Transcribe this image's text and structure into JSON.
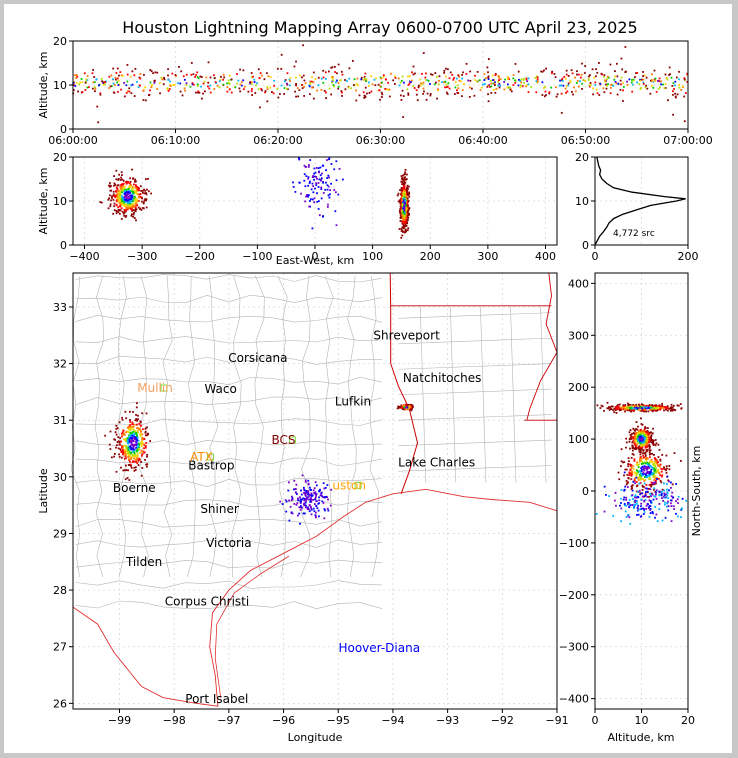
{
  "title": "Houston Lightning Mapping Array 0600-0700 UTC April 23, 2025",
  "colors": {
    "coast": "#e03030",
    "state_border": "#cc0000",
    "county": "#b4b4b4",
    "grid": "#d8d8d8",
    "city": "#000000",
    "station": "#ff8c00",
    "station_box": "#80e040",
    "special": "#0000ff"
  },
  "chart_data": [
    {
      "type": "scatter",
      "name": "time-altitude",
      "xlabel": "",
      "ylabel": "Altitude, km",
      "x_ticks": [
        "06:00:00",
        "06:10:00",
        "06:20:00",
        "06:30:00",
        "06:40:00",
        "06:50:00",
        "07:00:00"
      ],
      "xlim_minutes": [
        0,
        60
      ],
      "ylim": [
        0,
        20
      ],
      "y_ticks": [
        "0",
        "10",
        "20"
      ],
      "points_note": "sources at ~8-13 km across full hour"
    },
    {
      "type": "scatter",
      "name": "east-west-altitude",
      "xlabel": "East-West, km",
      "ylabel": "Altitude, km",
      "xlim": [
        -420,
        420
      ],
      "x_ticks": [
        "−400",
        "−300",
        "−200",
        "−100",
        "0",
        "100",
        "200",
        "300",
        "400"
      ],
      "ylim": [
        0,
        20
      ],
      "y_ticks": [
        "0",
        "10",
        "20"
      ],
      "clusters": [
        {
          "x": -325,
          "y": 11,
          "spread_x": 25,
          "spread_y": 3
        },
        {
          "x": 5,
          "y": 14,
          "spread_x": 30,
          "spread_y": 5
        },
        {
          "x": 155,
          "y": 9,
          "spread_x": 6,
          "spread_y": 4
        }
      ]
    },
    {
      "type": "line",
      "name": "altitude-histogram",
      "xlim": [
        0,
        200
      ],
      "x_ticks": [
        "0",
        "200"
      ],
      "ylim": [
        0,
        20
      ],
      "y_ticks": [
        "0",
        "10",
        "20"
      ],
      "annotation": "4,772 src",
      "profile": [
        [
          0,
          0
        ],
        [
          5,
          1
        ],
        [
          10,
          2
        ],
        [
          18,
          3
        ],
        [
          25,
          4
        ],
        [
          30,
          5
        ],
        [
          40,
          6
        ],
        [
          60,
          7
        ],
        [
          90,
          8
        ],
        [
          120,
          9
        ],
        [
          175,
          10
        ],
        [
          195,
          10.5
        ],
        [
          150,
          11
        ],
        [
          80,
          12
        ],
        [
          40,
          13
        ],
        [
          25,
          14
        ],
        [
          15,
          15
        ],
        [
          10,
          16
        ],
        [
          12,
          17
        ],
        [
          8,
          18
        ],
        [
          6,
          19
        ],
        [
          4,
          20
        ]
      ]
    },
    {
      "type": "map",
      "name": "plan-view",
      "xlabel": "Longitude",
      "ylabel": "Latitude",
      "xlim": [
        -99.85,
        -91
      ],
      "ylim": [
        25.9,
        33.6
      ],
      "x_ticks": [
        "−99",
        "−98",
        "−97",
        "−96",
        "−95",
        "−94",
        "−93",
        "−92",
        "−91"
      ],
      "y_ticks": [
        "26",
        "27",
        "28",
        "29",
        "30",
        "31",
        "32",
        "33"
      ],
      "cities": [
        {
          "name": "Shreveport",
          "lon": -93.75,
          "lat": 32.5
        },
        {
          "name": "Corsicana",
          "lon": -96.47,
          "lat": 32.1
        },
        {
          "name": "Natchitoches",
          "lon": -93.1,
          "lat": 31.75
        },
        {
          "name": "Waco",
          "lon": -97.15,
          "lat": 31.55
        },
        {
          "name": "Lufkin",
          "lon": -94.73,
          "lat": 31.33
        },
        {
          "name": "Bastrop",
          "lon": -97.32,
          "lat": 30.2
        },
        {
          "name": "Lake Charles",
          "lon": -93.2,
          "lat": 30.25
        },
        {
          "name": "Boerne",
          "lon": -98.73,
          "lat": 29.8
        },
        {
          "name": "Shiner",
          "lon": -97.17,
          "lat": 29.43
        },
        {
          "name": "Victoria",
          "lon": -97.0,
          "lat": 28.83
        },
        {
          "name": "Tilden",
          "lon": -98.55,
          "lat": 28.5
        },
        {
          "name": "Corpus Christi",
          "lon": -97.4,
          "lat": 27.8
        },
        {
          "name": "Port Isabel",
          "lon": -97.22,
          "lat": 26.08
        }
      ],
      "stations": [
        {
          "name": "Mullin",
          "lon": -98.35,
          "lat": 31.57,
          "color": "#f4a060"
        },
        {
          "name": "ATX",
          "lon": -97.5,
          "lat": 30.35,
          "color": "#ff8c00"
        },
        {
          "name": "BCS",
          "lon": -96.0,
          "lat": 30.65,
          "color": "#800000"
        },
        {
          "name": "uston",
          "lon": -94.8,
          "lat": 29.85,
          "color": "#ffa500"
        }
      ],
      "label_special": {
        "name": "Hoover-Diana",
        "lon": -94.25,
        "lat": 26.98
      },
      "clusters": [
        {
          "lon": -98.75,
          "lat": 30.6,
          "spread_lon": 0.25,
          "spread_lat": 0.4
        },
        {
          "lon": -95.55,
          "lat": 29.6,
          "spread_lon": 0.3,
          "spread_lat": 0.25
        },
        {
          "lon": -93.75,
          "lat": 31.23,
          "spread_lon": 0.1,
          "spread_lat": 0.04
        }
      ]
    },
    {
      "type": "scatter",
      "name": "altitude-north-south",
      "xlabel": "Altitude, km",
      "ylabel": "North-South, km",
      "xlim": [
        0,
        20
      ],
      "x_ticks": [
        "0",
        "10",
        "20"
      ],
      "ylim": [
        -420,
        420
      ],
      "y_ticks": [
        "−400",
        "−300",
        "−200",
        "−100",
        "0",
        "100",
        "200",
        "300",
        "400"
      ],
      "clusters": [
        {
          "x": 10,
          "y": 160,
          "spread_x": 6,
          "spread_y": 5
        },
        {
          "x": 10,
          "y": 100,
          "spread_x": 2,
          "spread_y": 20
        },
        {
          "x": 11,
          "y": 40,
          "spread_x": 4,
          "spread_y": 30
        },
        {
          "x": 12,
          "y": -20,
          "spread_x": 7,
          "spread_y": 30
        }
      ]
    }
  ]
}
